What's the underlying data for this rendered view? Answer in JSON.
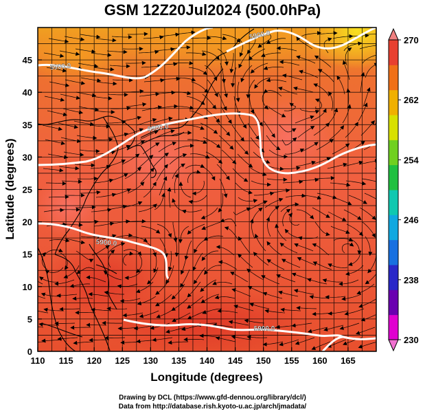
{
  "title": "GSM 12Z20Jul2024 (500.0hPa)",
  "xaxis": {
    "label": "Longitude (degrees)",
    "range": [
      110,
      170
    ],
    "ticks": [
      "110",
      "115",
      "120",
      "125",
      "130",
      "135",
      "140",
      "145",
      "150",
      "155",
      "160",
      "165"
    ]
  },
  "yaxis": {
    "label": "Latitude  (degrees)",
    "range": [
      0,
      50
    ],
    "ticks": [
      "0",
      "5",
      "10",
      "15",
      "20",
      "25",
      "30",
      "35",
      "40",
      "45"
    ]
  },
  "colorbar": {
    "min": 230,
    "max": 270,
    "ticks": [
      "230",
      "238",
      "246",
      "254",
      "262",
      "270"
    ],
    "colors": [
      "#e000d0",
      "#6a00b0",
      "#2a28c8",
      "#1870e0",
      "#10a8e0",
      "#10c8b0",
      "#20c040",
      "#70d020",
      "#d8e000",
      "#f0b000",
      "#f07018",
      "#e84030"
    ]
  },
  "contours": {
    "label": "5900.0",
    "unit": "m"
  },
  "footer": {
    "line1": "Drawing by DCL (https://www.gfd-dennou.org/library/dcl/)",
    "line2": "Data from http://database.rish.kyoto-u.ac.jp/arch/jmadata/"
  }
}
